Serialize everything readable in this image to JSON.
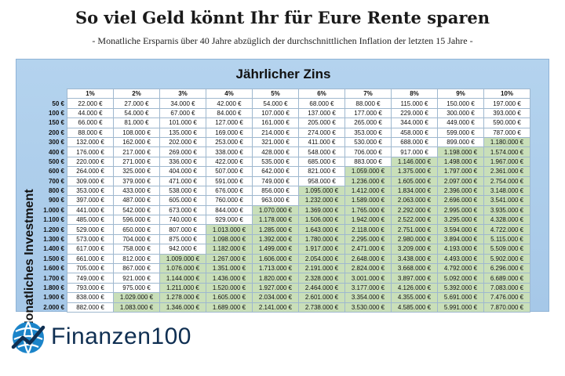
{
  "title": "So viel Geld könnt Ihr für Eure Rente sparen",
  "subtitle": "- Monatliche Ersparnis über 40 Jahre abzüglich der durchschnittlichen Inflation der letzten 15 Jahre -",
  "table": {
    "title": "Jährlicher Zins",
    "row_axis_label": "Monatliches Investment",
    "highlight_color": "#c9dfb9",
    "columns": [
      "1%",
      "2%",
      "3%",
      "4%",
      "5%",
      "6%",
      "7%",
      "8%",
      "9%",
      "10%"
    ],
    "rows": [
      {
        "label": "50 €",
        "values": [
          "22.000 €",
          "27.000 €",
          "34.000 €",
          "42.000 €",
          "54.000 €",
          "68.000 €",
          "88.000 €",
          "115.000 €",
          "150.000 €",
          "197.000 €"
        ],
        "hl_from": 10
      },
      {
        "label": "100 €",
        "values": [
          "44.000 €",
          "54.000 €",
          "67.000 €",
          "84.000 €",
          "107.000 €",
          "137.000 €",
          "177.000 €",
          "229.000 €",
          "300.000 €",
          "393.000 €"
        ],
        "hl_from": 10
      },
      {
        "label": "150 €",
        "values": [
          "66.000 €",
          "81.000 €",
          "101.000 €",
          "127.000 €",
          "161.000 €",
          "205.000 €",
          "265.000 €",
          "344.000 €",
          "449.000 €",
          "590.000 €"
        ],
        "hl_from": 10
      },
      {
        "label": "200 €",
        "values": [
          "88.000 €",
          "108.000 €",
          "135.000 €",
          "169.000 €",
          "214.000 €",
          "274.000 €",
          "353.000 €",
          "458.000 €",
          "599.000 €",
          "787.000 €"
        ],
        "hl_from": 10
      },
      {
        "label": "300 €",
        "values": [
          "132.000 €",
          "162.000 €",
          "202.000 €",
          "253.000 €",
          "321.000 €",
          "411.000 €",
          "530.000 €",
          "688.000 €",
          "899.000 €",
          "1.180.000 €"
        ],
        "hl_from": 9
      },
      {
        "label": "400 €",
        "values": [
          "176.000 €",
          "217.000 €",
          "269.000 €",
          "338.000 €",
          "428.000 €",
          "548.000 €",
          "706.000 €",
          "917.000 €",
          "1.198.000 €",
          "1.574.000 €"
        ],
        "hl_from": 8
      },
      {
        "label": "500 €",
        "values": [
          "220.000 €",
          "271.000 €",
          "336.000 €",
          "422.000 €",
          "535.000 €",
          "685.000 €",
          "883.000 €",
          "1.146.000 €",
          "1.498.000 €",
          "1.967.000 €"
        ],
        "hl_from": 7
      },
      {
        "label": "600 €",
        "values": [
          "264.000 €",
          "325.000 €",
          "404.000 €",
          "507.000 €",
          "642.000 €",
          "821.000 €",
          "1.059.000 €",
          "1.375.000 €",
          "1.797.000 €",
          "2.361.000 €"
        ],
        "hl_from": 6
      },
      {
        "label": "700 €",
        "values": [
          "309.000 €",
          "379.000 €",
          "471.000 €",
          "591.000 €",
          "749.000 €",
          "958.000 €",
          "1.236.000 €",
          "1.605.000 €",
          "2.097.000 €",
          "2.754.000 €"
        ],
        "hl_from": 6
      },
      {
        "label": "800 €",
        "values": [
          "353.000 €",
          "433.000 €",
          "538.000 €",
          "676.000 €",
          "856.000 €",
          "1.095.000 €",
          "1.412.000 €",
          "1.834.000 €",
          "2.396.000 €",
          "3.148.000 €"
        ],
        "hl_from": 5
      },
      {
        "label": "900 €",
        "values": [
          "397.000 €",
          "487.000 €",
          "605.000 €",
          "760.000 €",
          "963.000 €",
          "1.232.000 €",
          "1.589.000 €",
          "2.063.000 €",
          "2.696.000 €",
          "3.541.000 €"
        ],
        "hl_from": 5
      },
      {
        "label": "1.000 €",
        "values": [
          "441.000 €",
          "542.000 €",
          "673.000 €",
          "844.000 €",
          "1.070.000 €",
          "1.369.000 €",
          "1.765.000 €",
          "2.292.000 €",
          "2.995.000 €",
          "3.935.000 €"
        ],
        "hl_from": 4
      },
      {
        "label": "1.100 €",
        "values": [
          "485.000 €",
          "596.000 €",
          "740.000 €",
          "929.000 €",
          "1.178.000 €",
          "1.506.000 €",
          "1.942.000 €",
          "2.522.000 €",
          "3.295.000 €",
          "4.328.000 €"
        ],
        "hl_from": 4
      },
      {
        "label": "1.200 €",
        "values": [
          "529.000 €",
          "650.000 €",
          "807.000 €",
          "1.013.000 €",
          "1.285.000 €",
          "1.643.000 €",
          "2.118.000 €",
          "2.751.000 €",
          "3.594.000 €",
          "4.722.000 €"
        ],
        "hl_from": 3
      },
      {
        "label": "1.300 €",
        "values": [
          "573.000 €",
          "704.000 €",
          "875.000 €",
          "1.098.000 €",
          "1.392.000 €",
          "1.780.000 €",
          "2.295.000 €",
          "2.980.000 €",
          "3.894.000 €",
          "5.115.000 €"
        ],
        "hl_from": 3
      },
      {
        "label": "1.400 €",
        "values": [
          "617.000 €",
          "758.000 €",
          "942.000 €",
          "1.182.000 €",
          "1.499.000 €",
          "1.917.000 €",
          "2.471.000 €",
          "3.209.000 €",
          "4.193.000 €",
          "5.509.000 €"
        ],
        "hl_from": 3
      },
      {
        "label": "1.500 €",
        "values": [
          "661.000 €",
          "812.000 €",
          "1.009.000 €",
          "1.267.000 €",
          "1.606.000 €",
          "2.054.000 €",
          "2.648.000 €",
          "3.438.000 €",
          "4.493.000 €",
          "5.902.000 €"
        ],
        "hl_from": 2
      },
      {
        "label": "1.600 €",
        "values": [
          "705.000 €",
          "867.000 €",
          "1.076.000 €",
          "1.351.000 €",
          "1.713.000 €",
          "2.191.000 €",
          "2.824.000 €",
          "3.668.000 €",
          "4.792.000 €",
          "6.296.000 €"
        ],
        "hl_from": 2
      },
      {
        "label": "1.700 €",
        "values": [
          "749.000 €",
          "921.000 €",
          "1.144.000 €",
          "1.436.000 €",
          "1.820.000 €",
          "2.328.000 €",
          "3.001.000 €",
          "3.897.000 €",
          "5.092.000 €",
          "6.689.000 €"
        ],
        "hl_from": 2
      },
      {
        "label": "1.800 €",
        "values": [
          "793.000 €",
          "975.000 €",
          "1.211.000 €",
          "1.520.000 €",
          "1.927.000 €",
          "2.464.000 €",
          "3.177.000 €",
          "4.126.000 €",
          "5.392.000 €",
          "7.083.000 €"
        ],
        "hl_from": 2
      },
      {
        "label": "1.900 €",
        "values": [
          "838.000 €",
          "1.029.000 €",
          "1.278.000 €",
          "1.605.000 €",
          "2.034.000 €",
          "2.601.000 €",
          "3.354.000 €",
          "4.355.000 €",
          "5.691.000 €",
          "7.476.000 €"
        ],
        "hl_from": 1
      },
      {
        "label": "2.000 €",
        "values": [
          "882.000 €",
          "1.083.000 €",
          "1.346.000 €",
          "1.689.000 €",
          "2.141.000 €",
          "2.738.000 €",
          "3.530.000 €",
          "4.585.000 €",
          "5.991.000 €",
          "7.870.000 €"
        ],
        "hl_from": 1
      }
    ]
  },
  "logo": {
    "icon": "finanzen100-globe-chart-icon",
    "text_main": "Finanzen",
    "text_num": "100",
    "colors": {
      "dark": "#0f2f52",
      "blue": "#1b84c9"
    }
  }
}
